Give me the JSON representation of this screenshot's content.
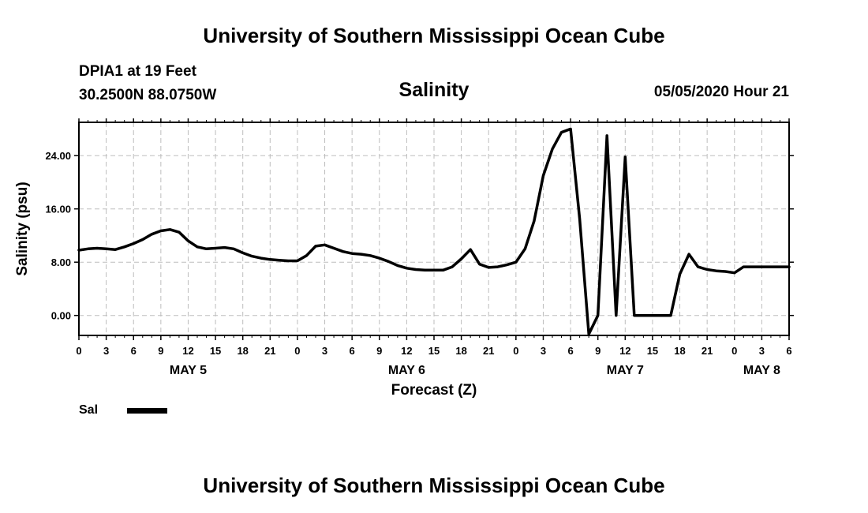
{
  "header": {
    "title": "University of Southern Mississippi Ocean Cube"
  },
  "station": {
    "name": "DPIA1 at 19 Feet",
    "coords": "30.2500N 88.0750W"
  },
  "run": {
    "datetime": "05/05/2020 Hour 21"
  },
  "footer": {
    "title": "University of Southern Mississippi Ocean Cube"
  },
  "legend": {
    "label": "Sal"
  },
  "colors": {
    "line": "#000000",
    "grid": "#bdbdbd"
  },
  "chart_data": {
    "type": "line",
    "title": "Salinity",
    "xlabel": "Forecast (Z)",
    "ylabel": "Salinity (psu)",
    "xlim": [
      0,
      78
    ],
    "ylim": [
      -3,
      29
    ],
    "grid": true,
    "yticks": [
      0,
      8,
      16,
      24
    ],
    "ytick_labels": [
      "0.00",
      "8.00",
      "16.00",
      "24.00"
    ],
    "xticks": [
      0,
      3,
      6,
      9,
      12,
      15,
      18,
      21,
      24,
      27,
      30,
      33,
      36,
      39,
      42,
      45,
      48,
      51,
      54,
      57,
      60,
      63,
      66,
      69,
      72,
      75,
      78
    ],
    "xtick_labels": [
      "0",
      "3",
      "6",
      "9",
      "12",
      "15",
      "18",
      "21",
      "0",
      "3",
      "6",
      "9",
      "12",
      "15",
      "18",
      "21",
      "0",
      "3",
      "6",
      "9",
      "12",
      "15",
      "18",
      "21",
      "0",
      "3",
      "6"
    ],
    "day_labels": [
      {
        "label": "MAY 5",
        "x": 12
      },
      {
        "label": "MAY 6",
        "x": 36
      },
      {
        "label": "MAY 7",
        "x": 60
      },
      {
        "label": "MAY 8",
        "x": 75
      }
    ],
    "legend_position": "bottom-left",
    "series": [
      {
        "name": "Sal",
        "x": [
          0,
          1,
          2,
          3,
          4,
          5,
          6,
          7,
          8,
          9,
          10,
          11,
          12,
          13,
          14,
          15,
          16,
          17,
          18,
          19,
          20,
          21,
          22,
          23,
          24,
          25,
          26,
          27,
          28,
          29,
          30,
          31,
          32,
          33,
          34,
          35,
          36,
          37,
          38,
          39,
          40,
          41,
          42,
          43,
          44,
          45,
          46,
          47,
          48,
          49,
          50,
          51,
          52,
          53,
          54,
          55,
          56,
          57,
          58,
          59,
          60,
          61,
          62,
          63,
          64,
          65,
          66,
          67,
          68,
          69,
          70,
          71,
          72,
          73,
          74,
          75,
          76,
          77,
          78
        ],
        "values": [
          9.8,
          10.0,
          10.1,
          10.0,
          9.9,
          10.3,
          10.8,
          11.4,
          12.2,
          12.7,
          12.9,
          12.5,
          11.2,
          10.3,
          10.0,
          10.1,
          10.2,
          10.0,
          9.4,
          8.9,
          8.6,
          8.4,
          8.3,
          8.2,
          8.2,
          9.0,
          10.4,
          10.6,
          10.1,
          9.6,
          9.3,
          9.2,
          9.0,
          8.6,
          8.1,
          7.5,
          7.1,
          6.9,
          6.8,
          6.8,
          6.8,
          7.3,
          8.5,
          9.9,
          7.7,
          7.2,
          7.3,
          7.6,
          8.0,
          10.0,
          14.2,
          21.0,
          25.0,
          27.5,
          28.0,
          14.5,
          -2.8,
          0,
          27.0,
          0,
          23.8,
          0,
          0,
          0,
          0,
          0,
          6.2,
          9.2,
          7.3,
          6.9,
          6.7,
          6.6,
          6.4,
          7.3,
          7.3,
          7.3,
          7.3,
          7.3,
          7.3
        ]
      }
    ]
  }
}
